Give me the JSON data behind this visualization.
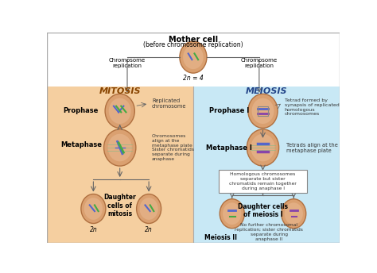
{
  "bg_color": "#ffffff",
  "mitosis_bg": "#f5cfa0",
  "meiosis_bg": "#c8e8f5",
  "title": "Mother cell",
  "subtitle": "(before chromosome replication)",
  "diploid_label": "2n = 4",
  "left_arrow_label": "Chromosome\nreplication",
  "right_arrow_label": "Chromosome\nreplication",
  "mitosis_header": "MITOSIS",
  "meiosis_header": "MEIOSIS",
  "cell_fill": "#daa070",
  "cell_fill_light": "#e8b890",
  "cell_edge": "#b07040",
  "cell_inner_fill": "#c88858",
  "header_color_mitosis": "#884400",
  "header_color_meiosis": "#224488",
  "desc_color": "#333333",
  "stage_bold_color": "#000000",
  "arrow_color": "#666666",
  "chr_blue": "#5566cc",
  "chr_green": "#44aa44",
  "chr_purple": "#8844aa",
  "box_edge": "#888888"
}
